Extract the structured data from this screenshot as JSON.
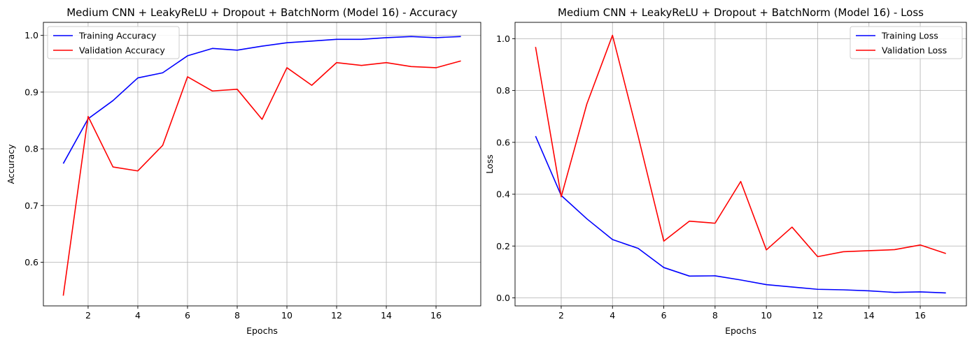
{
  "chart_data": [
    {
      "type": "line",
      "title": "Medium CNN + LeakyReLU + Dropout + BatchNorm (Model 16) - Accuracy",
      "xlabel": "Epochs",
      "ylabel": "Accuracy",
      "xlim": [
        0.2,
        17.8
      ],
      "ylim": [
        0.523,
        1.023
      ],
      "xticks": [
        2,
        4,
        6,
        8,
        10,
        12,
        14,
        16
      ],
      "yticks": [
        0.6,
        0.7,
        0.8,
        0.9,
        1.0
      ],
      "ytick_labels": [
        "0.6",
        "0.7",
        "0.8",
        "0.9",
        "1.0"
      ],
      "grid": true,
      "legend": "upper left",
      "x": [
        1,
        2,
        3,
        4,
        5,
        6,
        7,
        8,
        9,
        10,
        11,
        12,
        13,
        14,
        15,
        16,
        17
      ],
      "series": [
        {
          "name": "Training Accuracy",
          "color": "#0000ff",
          "values": [
            0.774,
            0.853,
            0.885,
            0.925,
            0.934,
            0.964,
            0.977,
            0.974,
            0.981,
            0.987,
            0.99,
            0.993,
            0.993,
            0.996,
            0.998,
            0.996,
            0.998
          ]
        },
        {
          "name": "Validation Accuracy",
          "color": "#ff0000",
          "values": [
            0.541,
            0.857,
            0.768,
            0.761,
            0.806,
            0.927,
            0.902,
            0.905,
            0.852,
            0.943,
            0.912,
            0.952,
            0.947,
            0.952,
            0.945,
            0.943,
            0.955
          ]
        }
      ]
    },
    {
      "type": "line",
      "title": "Medium CNN + LeakyReLU + Dropout + BatchNorm (Model 16) - Loss",
      "xlabel": "Epochs",
      "ylabel": "Loss",
      "xlim": [
        0.2,
        17.8
      ],
      "ylim": [
        -0.031,
        1.063
      ],
      "xticks": [
        2,
        4,
        6,
        8,
        10,
        12,
        14,
        16
      ],
      "yticks": [
        0.0,
        0.2,
        0.4,
        0.6,
        0.8,
        1.0
      ],
      "ytick_labels": [
        "0.0",
        "0.2",
        "0.4",
        "0.6",
        "0.8",
        "1.0"
      ],
      "grid": true,
      "legend": "upper right",
      "x": [
        1,
        2,
        3,
        4,
        5,
        6,
        7,
        8,
        9,
        10,
        11,
        12,
        13,
        14,
        15,
        16,
        17
      ],
      "series": [
        {
          "name": "Training Loss",
          "color": "#0000ff",
          "values": [
            0.624,
            0.395,
            0.305,
            0.225,
            0.191,
            0.117,
            0.084,
            0.085,
            0.069,
            0.051,
            0.042,
            0.033,
            0.031,
            0.027,
            0.021,
            0.023,
            0.019
          ]
        },
        {
          "name": "Validation Loss",
          "color": "#ff0000",
          "values": [
            0.968,
            0.39,
            0.748,
            1.013,
            0.624,
            0.219,
            0.296,
            0.288,
            0.449,
            0.185,
            0.273,
            0.159,
            0.178,
            0.182,
            0.186,
            0.204,
            0.171
          ]
        }
      ]
    }
  ]
}
